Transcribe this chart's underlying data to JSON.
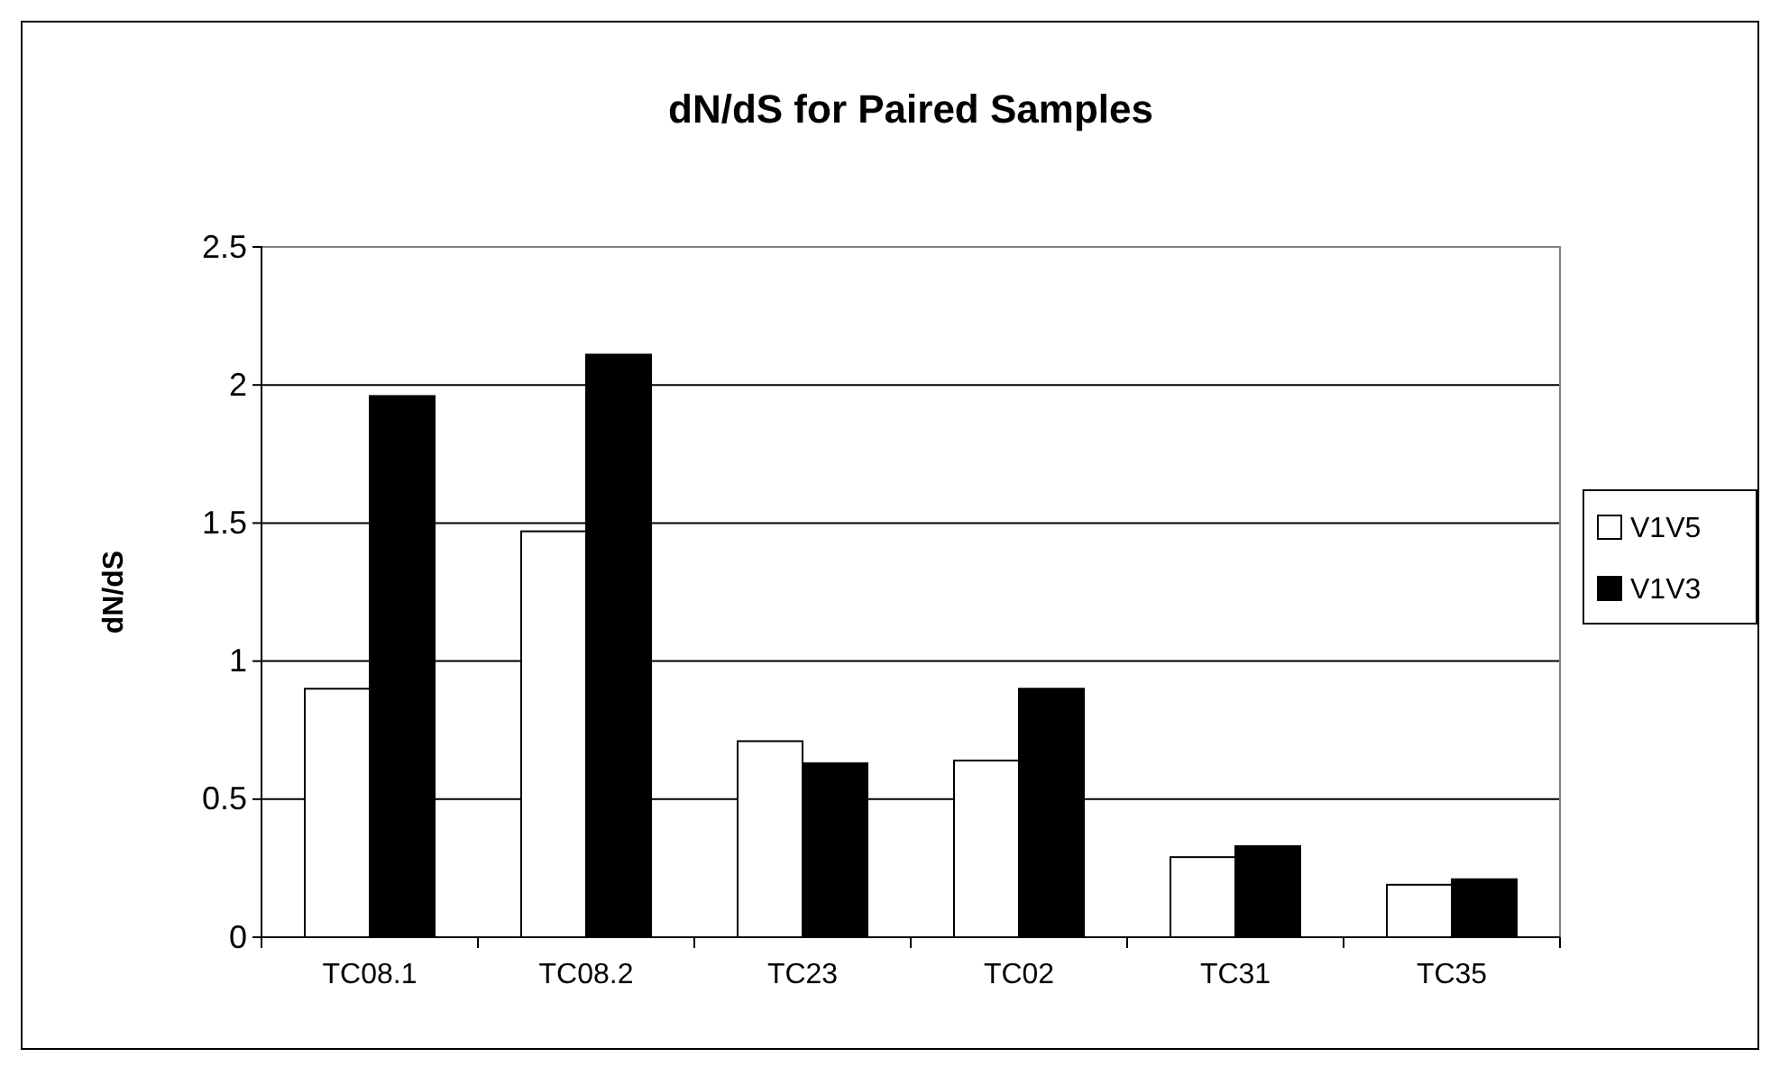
{
  "chart_data": {
    "type": "bar",
    "title": "dN/dS for Paired Samples",
    "ylabel": "dN/dS",
    "categories": [
      "TC08.1",
      "TC08.2",
      "TC23",
      "TC02",
      "TC31",
      "TC35"
    ],
    "series": [
      {
        "name": "V1V5",
        "color": "#ffffff",
        "values": [
          0.9,
          1.47,
          0.71,
          0.64,
          0.29,
          0.19
        ]
      },
      {
        "name": "V1V3",
        "color": "#000000",
        "values": [
          1.96,
          2.11,
          0.63,
          0.9,
          0.33,
          0.21
        ]
      }
    ],
    "ylim": [
      0,
      2.5
    ],
    "yticks": [
      0,
      {
        "value": 0.5,
        "label": "0.5"
      },
      1,
      {
        "value": 1.5,
        "label": "1.5"
      },
      2,
      {
        "value": 2.5,
        "label": "2.5"
      }
    ],
    "grid": "y",
    "legend": "right"
  }
}
